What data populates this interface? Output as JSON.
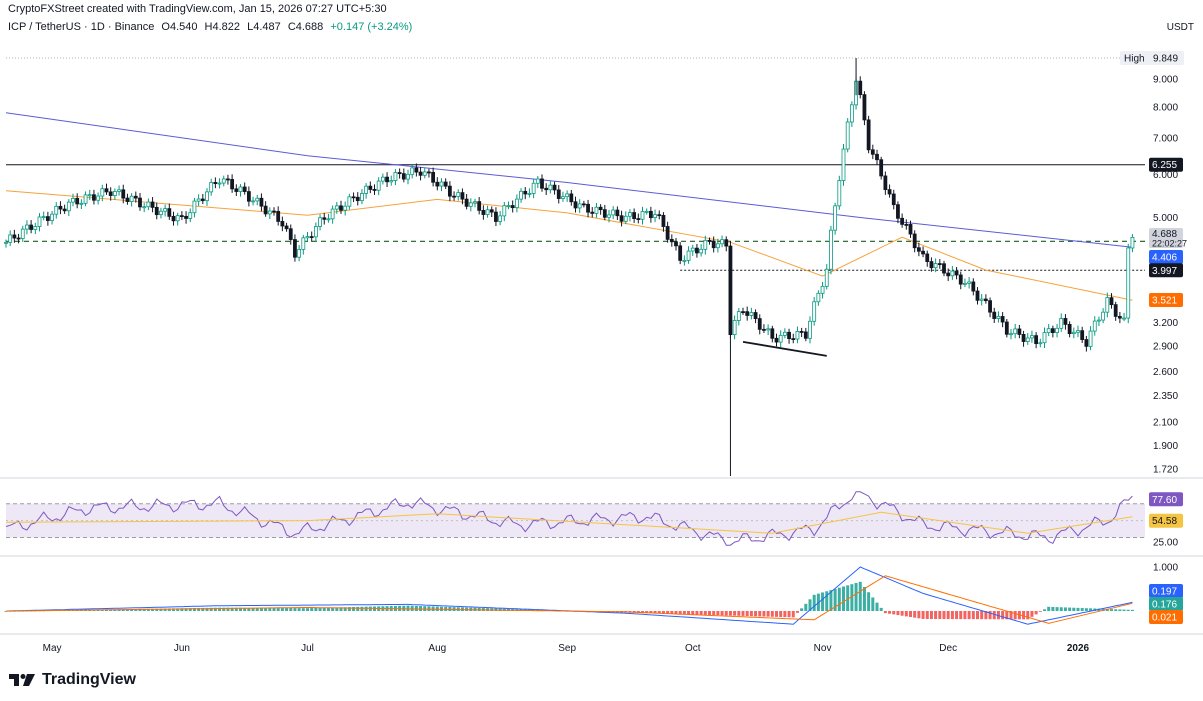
{
  "header": {
    "credit": "CryptoFXStreet created with TradingView.com, Jan 15, 2026 07:27 UTC+5:30",
    "symbol": "ICP / TetherUS · 1D · Binance",
    "open": "O4.540",
    "high": "H4.822",
    "low": "L4.487",
    "close": "C4.688",
    "change": "+0.147 (+3.24%)",
    "currency": "USDT"
  },
  "branding": {
    "name": "TradingView",
    "icon": "tradingview-logo-icon"
  },
  "colors": {
    "up": "#089981",
    "down": "#131722",
    "ma200": "#5b5bd6",
    "ma50": "#f7a23b",
    "rsi": "#7e57c2",
    "rsi_ma": "#f5c542",
    "macd": "#2962ff",
    "signal": "#ff6d00",
    "hist_pos": "#26a69a",
    "hist_neg": "#ef5350"
  },
  "chart_data": [
    {
      "type": "candlestick",
      "title": "ICP / TetherUS · 1D · Binance",
      "x_labels": [
        "May",
        "Jun",
        "Jul",
        "Aug",
        "Sep",
        "Oct",
        "Nov",
        "Dec",
        "2026"
      ],
      "x_range": [
        "2025-04-20",
        "2026-01-17"
      ],
      "y_scale": "log",
      "y_ticks": [
        "9.000",
        "8.000",
        "7.000",
        "6.000",
        "5.000",
        "3.200",
        "2.900",
        "2.600",
        "2.350",
        "2.100",
        "1.900",
        "1.720"
      ],
      "ohlc_points": [
        [
          "2025-04-20",
          4.5
        ],
        [
          "2025-05-05",
          5.3
        ],
        [
          "2025-05-15",
          5.6
        ],
        [
          "2025-05-25",
          5.2
        ],
        [
          "2025-06-01",
          4.95
        ],
        [
          "2025-06-10",
          5.9
        ],
        [
          "2025-06-15",
          5.6
        ],
        [
          "2025-06-25",
          4.9
        ],
        [
          "2025-06-28",
          4.3
        ],
        [
          "2025-07-05",
          5.0
        ],
        [
          "2025-07-20",
          5.9
        ],
        [
          "2025-07-28",
          6.1
        ],
        [
          "2025-08-05",
          5.5
        ],
        [
          "2025-08-15",
          5.0
        ],
        [
          "2025-08-25",
          5.8
        ],
        [
          "2025-09-05",
          5.2
        ],
        [
          "2025-09-15",
          5.0
        ],
        [
          "2025-09-22",
          5.1
        ],
        [
          "2025-09-28",
          4.2
        ],
        [
          "2025-10-05",
          4.5
        ],
        [
          "2025-10-09",
          4.45
        ],
        [
          "2025-10-10",
          3.1
        ],
        [
          "2025-10-13",
          3.4
        ],
        [
          "2025-10-20",
          3.0
        ],
        [
          "2025-10-28",
          3.05
        ],
        [
          "2025-11-02",
          4.0
        ],
        [
          "2025-11-06",
          6.6
        ],
        [
          "2025-11-09",
          9.0
        ],
        [
          "2025-11-12",
          6.8
        ],
        [
          "2025-11-18",
          5.2
        ],
        [
          "2025-11-25",
          4.2
        ],
        [
          "2025-12-05",
          3.8
        ],
        [
          "2025-12-15",
          3.1
        ],
        [
          "2025-12-22",
          2.95
        ],
        [
          "2025-12-28",
          3.2
        ],
        [
          "2026-01-03",
          2.95
        ],
        [
          "2026-01-08",
          3.5
        ],
        [
          "2026-01-12",
          3.2
        ],
        [
          "2026-01-13",
          4.4
        ],
        [
          "2026-01-14",
          4.688
        ]
      ],
      "price_labels": {
        "high": "High",
        "high_value": "9.849",
        "resistance": "6.255",
        "last": "4.688",
        "countdown": "22:02:27",
        "ma200": "4.406",
        "support": "3.997",
        "ma50": "3.521"
      },
      "levels": [
        6.255,
        4.406,
        3.997
      ],
      "series": [
        {
          "points": [
            [
              "2025-04-20",
              7.8
            ],
            [
              "2025-07-01",
              6.5
            ],
            [
              "2025-09-01",
              5.8
            ],
            [
              "2025-11-10",
              5.0
            ],
            [
              "2026-01-14",
              4.406
            ]
          ]
        },
        {
          "points": [
            [
              "2025-04-20",
              5.6
            ],
            [
              "2025-07-01",
              5.05
            ],
            [
              "2025-08-01",
              5.4
            ],
            [
              "2025-09-01",
              5.1
            ],
            [
              "2025-10-10",
              4.5
            ],
            [
              "2025-11-01",
              3.9
            ],
            [
              "2025-11-20",
              4.6
            ],
            [
              "2025-12-10",
              4.0
            ],
            [
              "2026-01-14",
              3.521
            ]
          ]
        }
      ]
    },
    {
      "type": "line",
      "y_ticks": [
        "25.00"
      ],
      "y_range": [
        20,
        85
      ],
      "bands": [
        70,
        30
      ],
      "labels": {
        "rsi": "77.60",
        "rsi_ma": "54.58"
      },
      "series": [
        {
          "points": [
            [
              "2025-04-20",
              40
            ],
            [
              "2025-05-10",
              65
            ],
            [
              "2025-06-10",
              70
            ],
            [
              "2025-06-28",
              35
            ],
            [
              "2025-07-25",
              72
            ],
            [
              "2025-08-20",
              45
            ],
            [
              "2025-09-20",
              55
            ],
            [
              "2025-10-10",
              25
            ],
            [
              "2025-10-30",
              40
            ],
            [
              "2025-11-09",
              85
            ],
            [
              "2025-11-25",
              45
            ],
            [
              "2025-12-25",
              30
            ],
            [
              "2026-01-08",
              50
            ],
            [
              "2026-01-14",
              77.6
            ]
          ]
        },
        {
          "points": [
            [
              "2025-04-20",
              48
            ],
            [
              "2025-07-01",
              50
            ],
            [
              "2025-08-01",
              58
            ],
            [
              "2025-10-20",
              35
            ],
            [
              "2025-11-15",
              60
            ],
            [
              "2025-12-20",
              35
            ],
            [
              "2026-01-14",
              54.58
            ]
          ]
        }
      ]
    },
    {
      "type": "line",
      "y_ticks": [
        "1.000"
      ],
      "labels": {
        "macd": "0.197",
        "signal": "0.176",
        "hist": "0.021"
      },
      "series": [
        {
          "points": [
            [
              "2025-04-20",
              0.0
            ],
            [
              "2025-06-10",
              0.12
            ],
            [
              "2025-07-25",
              0.15
            ],
            [
              "2025-09-15",
              -0.05
            ],
            [
              "2025-10-25",
              -0.3
            ],
            [
              "2025-11-10",
              1.0
            ],
            [
              "2025-11-25",
              0.4
            ],
            [
              "2025-12-20",
              -0.3
            ],
            [
              "2026-01-14",
              0.197
            ]
          ]
        },
        {
          "points": [
            [
              "2025-04-20",
              0.0
            ],
            [
              "2025-07-01",
              0.08
            ],
            [
              "2025-09-15",
              -0.02
            ],
            [
              "2025-10-30",
              -0.2
            ],
            [
              "2025-11-16",
              0.8
            ],
            [
              "2025-12-25",
              -0.28
            ],
            [
              "2026-01-14",
              0.176
            ]
          ]
        }
      ]
    }
  ]
}
